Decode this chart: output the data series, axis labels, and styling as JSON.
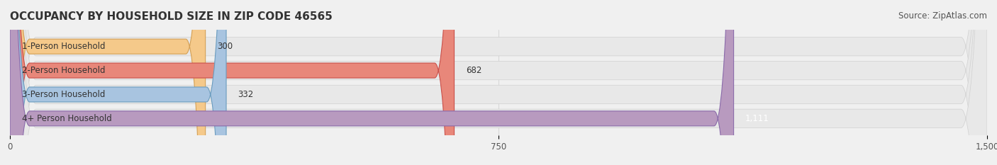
{
  "title": "OCCUPANCY BY HOUSEHOLD SIZE IN ZIP CODE 46565",
  "source": "Source: ZipAtlas.com",
  "categories": [
    "1-Person Household",
    "2-Person Household",
    "3-Person Household",
    "4+ Person Household"
  ],
  "values": [
    300,
    682,
    332,
    1111
  ],
  "bar_colors": [
    "#f5c98a",
    "#e8877a",
    "#a8c4e0",
    "#b89abf"
  ],
  "bar_edge_colors": [
    "#d4a055",
    "#c9504a",
    "#6a9cbf",
    "#8a6aaa"
  ],
  "value_labels": [
    "300",
    "682",
    "332",
    "1,111"
  ],
  "xlim": [
    0,
    1500
  ],
  "xticks": [
    0,
    750,
    1500
  ],
  "background_color": "#f0f0f0",
  "bar_bg_color": "#e8e8e8",
  "title_fontsize": 11,
  "source_fontsize": 8.5,
  "label_fontsize": 8.5,
  "tick_fontsize": 8.5,
  "value_fontsize": 8.5
}
